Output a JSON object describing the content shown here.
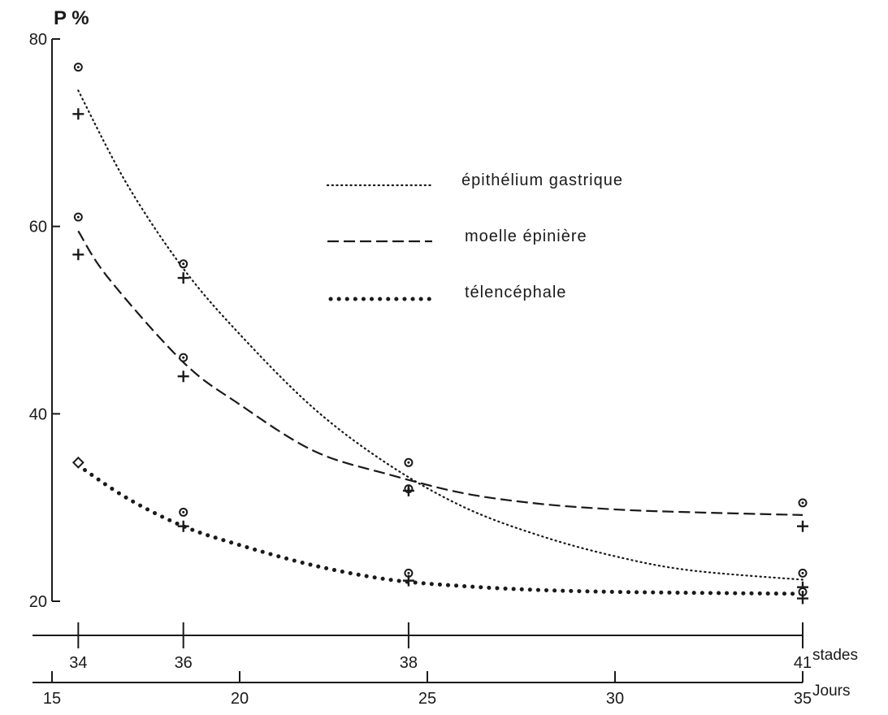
{
  "chart_data": {
    "type": "line",
    "title": "",
    "ylabel": "P %",
    "ylim": [
      20,
      80
    ],
    "yticks": [
      20,
      40,
      60,
      80
    ],
    "stades_label": "stades",
    "jours_label": "Jours",
    "stades_ticks": [
      {
        "label": "34",
        "day": 15.7
      },
      {
        "label": "36",
        "day": 18.5
      },
      {
        "label": "38",
        "day": 24.5
      },
      {
        "label": "41",
        "day": 35
      }
    ],
    "jours_ticks": [
      15,
      20,
      25,
      30,
      35
    ],
    "xlim_days": [
      15,
      35
    ],
    "series": [
      {
        "name": "épithélium gastrique",
        "style": "dotted-fine",
        "curve_days": [
          15.7,
          17,
          18.5,
          20,
          22,
          24,
          26,
          28,
          30,
          32,
          35
        ],
        "curve_values": [
          74.5,
          64.5,
          55.5,
          48.5,
          40.5,
          34.5,
          30.0,
          27.0,
          24.8,
          23.3,
          22.3
        ],
        "circles": [
          [
            15.7,
            77
          ],
          [
            18.5,
            56
          ],
          [
            24.5,
            32
          ],
          [
            35,
            23
          ]
        ],
        "crosses": [
          [
            15.7,
            72
          ],
          [
            18.5,
            54.5
          ],
          [
            24.5,
            31.8
          ],
          [
            35,
            21.5
          ]
        ]
      },
      {
        "name": "moelle épinière",
        "style": "dashed",
        "curve_days": [
          15.7,
          16.5,
          18.5,
          20,
          22,
          24,
          26,
          28,
          30,
          32,
          35
        ],
        "curve_values": [
          59.5,
          54.5,
          45.5,
          41.0,
          36.0,
          33.5,
          31.5,
          30.4,
          29.8,
          29.5,
          29.2
        ],
        "circles": [
          [
            15.7,
            61
          ],
          [
            18.5,
            46
          ],
          [
            24.5,
            34.8
          ],
          [
            35,
            30.5
          ]
        ],
        "crosses": [
          [
            15.7,
            57
          ],
          [
            18.5,
            44
          ],
          [
            35,
            28
          ]
        ]
      },
      {
        "name": "télencéphale",
        "style": "dotted-heavy",
        "curve_days": [
          15.7,
          17,
          18.5,
          20,
          22,
          24,
          26,
          28,
          30,
          32,
          35
        ],
        "curve_values": [
          34.5,
          31.0,
          28.0,
          26.0,
          23.8,
          22.3,
          21.6,
          21.2,
          21.0,
          20.9,
          20.8
        ],
        "circles": [
          [
            18.5,
            29.5
          ],
          [
            24.5,
            23
          ],
          [
            35,
            21
          ]
        ],
        "crosses": [
          [
            18.5,
            28
          ],
          [
            24.5,
            22.2
          ],
          [
            35,
            20.3
          ]
        ],
        "diamonds": [
          [
            15.7,
            34.8
          ]
        ]
      }
    ]
  }
}
